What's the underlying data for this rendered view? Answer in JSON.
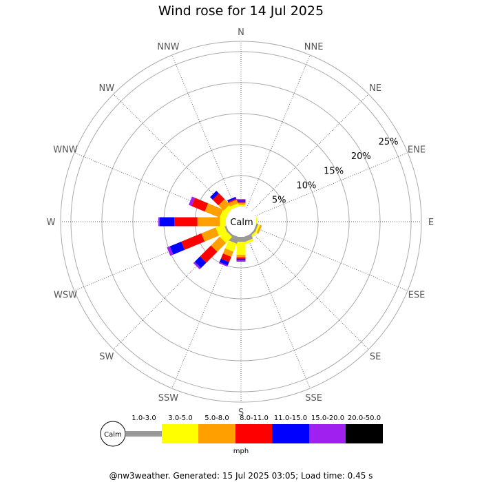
{
  "title": "Wind rose for 14 Jul 2025",
  "footer": "@nw3weather. Generated: 15 Jul 2025 03:05; Load time: 0.45 s",
  "calm_label": "Calm",
  "units": "mph",
  "directions": [
    "N",
    "NNE",
    "NE",
    "ENE",
    "E",
    "ESE",
    "SE",
    "SSE",
    "S",
    "SSW",
    "SW",
    "WSW",
    "W",
    "WNW",
    "NW",
    "NNW"
  ],
  "ring_labels": [
    "5%",
    "10%",
    "15%",
    "20%",
    "25%"
  ],
  "speed_bins": [
    {
      "label": "1.0-3.0",
      "color": "#999999"
    },
    {
      "label": "3.0-5.0",
      "color": "#ffff00"
    },
    {
      "label": "5.0-8.0",
      "color": "#ffa000"
    },
    {
      "label": "8.0-11.0",
      "color": "#ff0000"
    },
    {
      "label": "11.0-15.0",
      "color": "#0000ff"
    },
    {
      "label": "15.0-20.0",
      "color": "#a020f0"
    },
    {
      "label": "20.0-50.0",
      "color": "#000000"
    }
  ],
  "chart_data": {
    "type": "wind-rose",
    "title": "Wind rose for 14 Jul 2025",
    "unit": "percent of time",
    "rings": [
      5,
      10,
      15,
      20,
      25
    ],
    "categories": [
      "N",
      "NNE",
      "NE",
      "ENE",
      "E",
      "ESE",
      "SE",
      "SSE",
      "S",
      "SSW",
      "SW",
      "WSW",
      "W",
      "WNW",
      "NW",
      "NNW"
    ],
    "series": [
      {
        "name": "1.0-3.0",
        "values": [
          0.0,
          0.0,
          0.0,
          0.0,
          0.0,
          0.3,
          0.3,
          0.8,
          0.8,
          1.1,
          0.3,
          0.3,
          0.0,
          0.0,
          0.0,
          0.0
        ]
      },
      {
        "name": "3.0-5.0",
        "values": [
          0.3,
          0.0,
          0.0,
          0.0,
          0.2,
          0.3,
          0.3,
          0.4,
          2.1,
          1.4,
          1.4,
          1.4,
          1.0,
          1.0,
          0.8,
          0.5
        ]
      },
      {
        "name": "5.0-8.0",
        "values": [
          0.3,
          0.0,
          0.0,
          0.0,
          0.0,
          0.3,
          0.0,
          0.0,
          0.4,
          0.9,
          2.0,
          2.5,
          3.6,
          2.6,
          1.2,
          0.6
        ]
      },
      {
        "name": "8.0-11.0",
        "values": [
          0.2,
          0.0,
          0.0,
          0.0,
          0.0,
          0.0,
          0.0,
          0.0,
          0.3,
          0.9,
          2.5,
          3.5,
          3.7,
          2.3,
          1.3,
          0.2
        ]
      },
      {
        "name": "11.0-15.0",
        "values": [
          0.2,
          0.0,
          0.0,
          0.0,
          0.0,
          0.0,
          0.0,
          0.0,
          0.2,
          0.6,
          1.2,
          2.0,
          2.4,
          0.0,
          0.6,
          0.3
        ]
      },
      {
        "name": "15.0-20.0",
        "values": [
          0.2,
          0.0,
          0.0,
          0.0,
          0.0,
          0.0,
          0.0,
          0.0,
          0.2,
          0.2,
          0.3,
          0.5,
          0.2,
          0.5,
          0.0,
          0.0
        ]
      },
      {
        "name": "20.0-50.0",
        "values": [
          0,
          0,
          0,
          0,
          0,
          0,
          0,
          0,
          0,
          0,
          0,
          0,
          0,
          0,
          0,
          0
        ]
      }
    ]
  }
}
